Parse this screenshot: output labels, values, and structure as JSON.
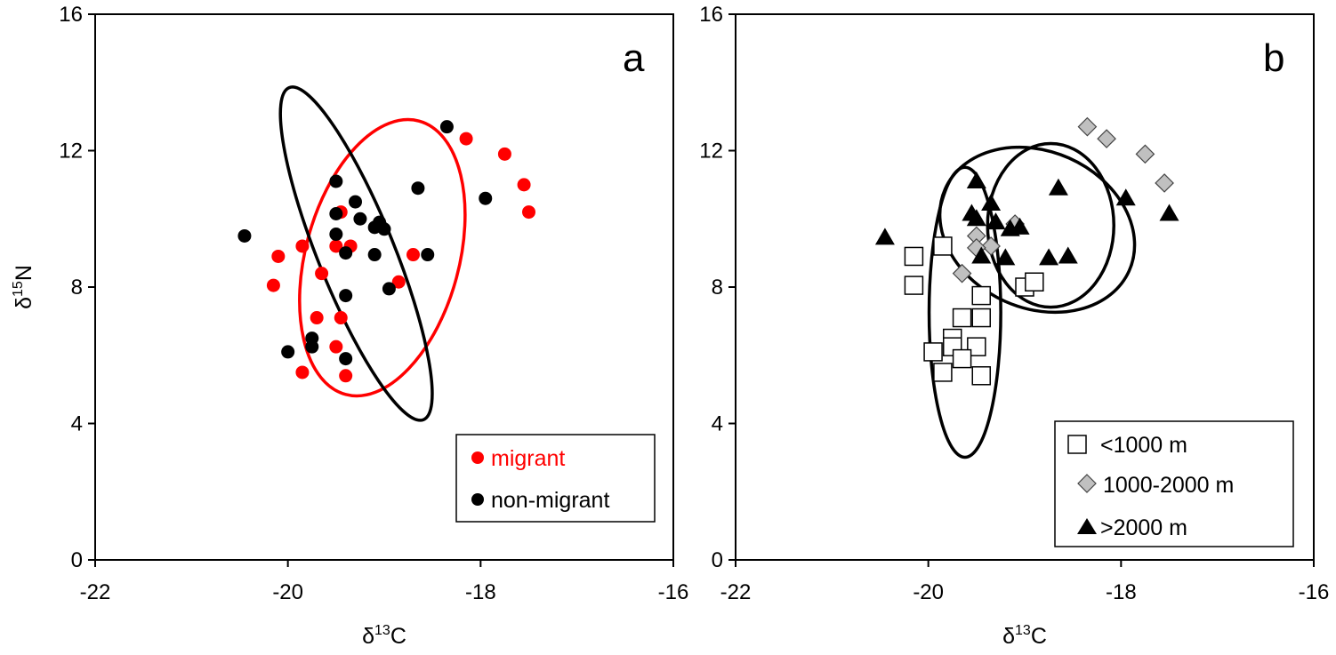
{
  "chart_data": [
    {
      "type": "scatter",
      "panel_label": "a",
      "xlabel": "δ13C",
      "ylabel": "δ15N",
      "xlim": [
        -22,
        -16
      ],
      "ylim": [
        0,
        16
      ],
      "xticks": [
        -22,
        -20,
        -18,
        -16
      ],
      "yticks": [
        0,
        4,
        8,
        12,
        16
      ],
      "xtick_labels": [
        "-22",
        "-20",
        "-18",
        "-16"
      ],
      "ytick_labels": [
        "0",
        "4",
        "8",
        "12",
        "16"
      ],
      "grid": false,
      "legend_position": "bottom-right",
      "series": [
        {
          "name": "migrant",
          "marker": "circle",
          "color": "#ff0000",
          "x": [
            -18.15,
            -17.75,
            -17.55,
            -17.5,
            -20.1,
            -20.15,
            -19.85,
            -19.65,
            -19.45,
            -19.5,
            -19.35,
            -19.7,
            -19.45,
            -19.5,
            -19.85,
            -19.4,
            -18.7,
            -18.85
          ],
          "y": [
            12.35,
            11.9,
            11.0,
            10.2,
            8.9,
            8.05,
            9.2,
            8.4,
            10.2,
            9.2,
            9.2,
            7.1,
            7.1,
            6.25,
            5.5,
            5.4,
            8.95,
            8.15
          ]
        },
        {
          "name": "non-migrant",
          "marker": "circle",
          "color": "#000000",
          "x": [
            -18.35,
            -17.95,
            -18.65,
            -18.55,
            -20.45,
            -19.5,
            -19.3,
            -19.5,
            -19.25,
            -19.5,
            -19.1,
            -19.05,
            -19.0,
            -19.4,
            -19.1,
            -18.95,
            -19.4,
            -19.75,
            -19.75,
            -19.4,
            -20.0
          ],
          "y": [
            12.7,
            10.6,
            10.9,
            8.95,
            9.5,
            11.1,
            10.5,
            10.15,
            10.0,
            9.55,
            9.75,
            9.9,
            9.7,
            9.0,
            8.95,
            7.95,
            7.75,
            6.5,
            6.25,
            5.9,
            6.1
          ]
        }
      ],
      "ellipses": [
        {
          "series": "migrant",
          "color": "#ff0000",
          "center": [
            -19.02,
            8.86
          ],
          "rx_units": 2.25,
          "ry_units": 4.15,
          "angle_deg": 15
        },
        {
          "series": "non-migrant",
          "color": "#000000",
          "center": [
            -19.29,
            8.98
          ],
          "rx_units": 1.12,
          "ry_units": 5.25,
          "angle_deg": -22
        }
      ]
    },
    {
      "type": "scatter",
      "panel_label": "b",
      "xlabel": "δ13C",
      "ylabel": "",
      "xlim": [
        -22,
        -16
      ],
      "ylim": [
        0,
        16
      ],
      "xticks": [
        -22,
        -20,
        -18,
        -16
      ],
      "yticks": [
        0,
        4,
        8,
        12,
        16
      ],
      "xtick_labels": [
        "-22",
        "-20",
        "-18",
        "-16"
      ],
      "ytick_labels": [
        "0",
        "4",
        "8",
        "12",
        "16"
      ],
      "grid": false,
      "legend_position": "bottom-right",
      "series": [
        {
          "name": "<1000 m",
          "marker": "square",
          "color": "#ffffff",
          "x": [
            -20.15,
            -20.15,
            -19.85,
            -19.65,
            -19.75,
            -19.75,
            -19.5,
            -19.45,
            -19.45,
            -19.95,
            -19.85,
            -19.65,
            -19.45,
            -19.0,
            -18.9
          ],
          "y": [
            8.9,
            8.05,
            9.2,
            7.1,
            6.5,
            6.25,
            6.25,
            7.1,
            7.75,
            6.1,
            5.5,
            5.9,
            5.4,
            8.0,
            8.15
          ]
        },
        {
          "name": "1000-2000 m",
          "marker": "diamond",
          "color": "#c0c0c0",
          "x": [
            -18.35,
            -18.15,
            -17.75,
            -17.55,
            -19.5,
            -19.35,
            -19.1,
            -19.5,
            -19.65
          ],
          "y": [
            12.7,
            12.35,
            11.9,
            11.05,
            9.5,
            9.2,
            9.85,
            9.15,
            8.4
          ]
        },
        {
          "name": ">2000 m",
          "marker": "triangle",
          "color": "#000000",
          "x": [
            -20.45,
            -19.5,
            -19.35,
            -19.55,
            -19.5,
            -19.3,
            -19.15,
            -19.05,
            -18.65,
            -17.95,
            -17.5,
            -19.45,
            -19.2,
            -18.75,
            -18.55
          ],
          "y": [
            9.45,
            11.1,
            10.45,
            10.15,
            10.0,
            9.9,
            9.7,
            9.75,
            10.9,
            10.6,
            10.15,
            8.9,
            8.85,
            8.85,
            8.9
          ]
        }
      ],
      "ellipses": [
        {
          "series": "<1000 m",
          "color": "#000000",
          "center": [
            -19.62,
            7.26
          ],
          "rx_units": 1.05,
          "ry_units": 4.25,
          "angle_deg": 0
        },
        {
          "series": "1000-2000 m",
          "color": "#000000",
          "center": [
            -18.87,
            9.68
          ],
          "rx_units": 2.95,
          "ry_units": 2.3,
          "angle_deg": 24
        },
        {
          "series": ">2000 m",
          "color": "#000000",
          "center": [
            -18.73,
            9.81
          ],
          "rx_units": 1.85,
          "ry_units": 2.4,
          "angle_deg": 0
        }
      ]
    }
  ]
}
